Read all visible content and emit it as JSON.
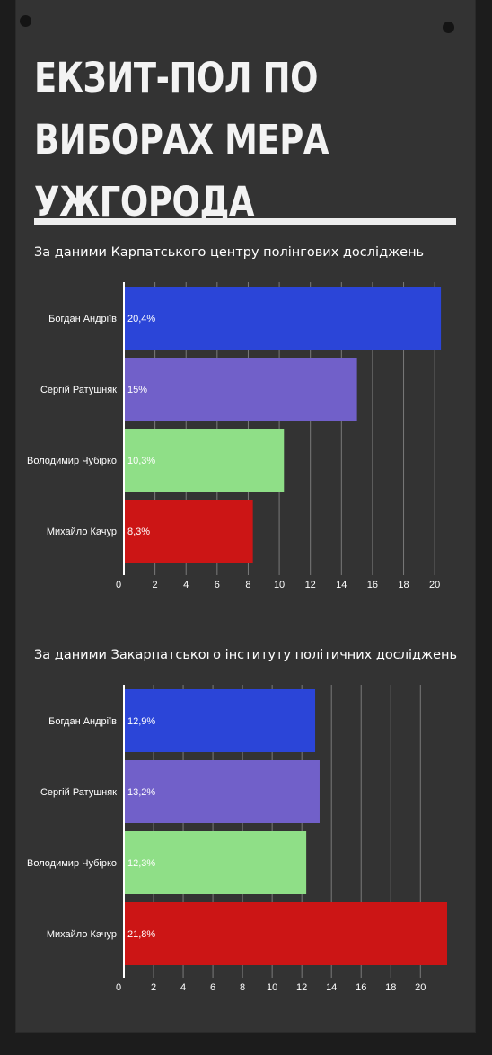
{
  "title_lines": [
    "ЕКЗИТ-ПОЛ ПО",
    "ВИБОРАХ МЕРА",
    "УЖГОРОДА"
  ],
  "colors": {
    "background": "#333333",
    "grid": "#7a7a7a",
    "text": "#ffffff"
  },
  "chart_data": [
    {
      "type": "bar",
      "orientation": "horizontal",
      "title": "За даними Карпатського центру полінгових досліджень",
      "categories": [
        "Богдан Андріїв",
        "Сергій Ратушняк",
        "Володимир Чубірко",
        "Михайло Качур"
      ],
      "values": [
        20.4,
        15,
        10.3,
        8.3
      ],
      "value_labels": [
        "20,4%",
        "15%",
        "10,3%",
        "8,3%"
      ],
      "bar_colors": [
        "#2b45d8",
        "#7160c9",
        "#8fdf87",
        "#cc1515"
      ],
      "x_ticks": [
        "0",
        "2",
        "4",
        "6",
        "8",
        "10",
        "12",
        "14",
        "16",
        "18",
        "20"
      ],
      "xlim": [
        0,
        20.8
      ],
      "grid": true
    },
    {
      "type": "bar",
      "orientation": "horizontal",
      "title": "За даними Закарпатського інституту політичних досліджень",
      "categories": [
        "Богдан Андріїв",
        "Сергій Ратушняк",
        "Володимир Чубірко",
        "Михайло Качур"
      ],
      "values": [
        12.9,
        13.2,
        12.3,
        21.8
      ],
      "value_labels": [
        "12,9%",
        "13,2%",
        "12,3%",
        "21,8%"
      ],
      "bar_colors": [
        "#2b45d8",
        "#7160c9",
        "#8fdf87",
        "#cc1515"
      ],
      "x_ticks": [
        "0",
        "2",
        "4",
        "6",
        "8",
        "10",
        "12",
        "14",
        "16",
        "18",
        "20"
      ],
      "xlim": [
        0,
        21.8
      ],
      "grid": true
    }
  ]
}
